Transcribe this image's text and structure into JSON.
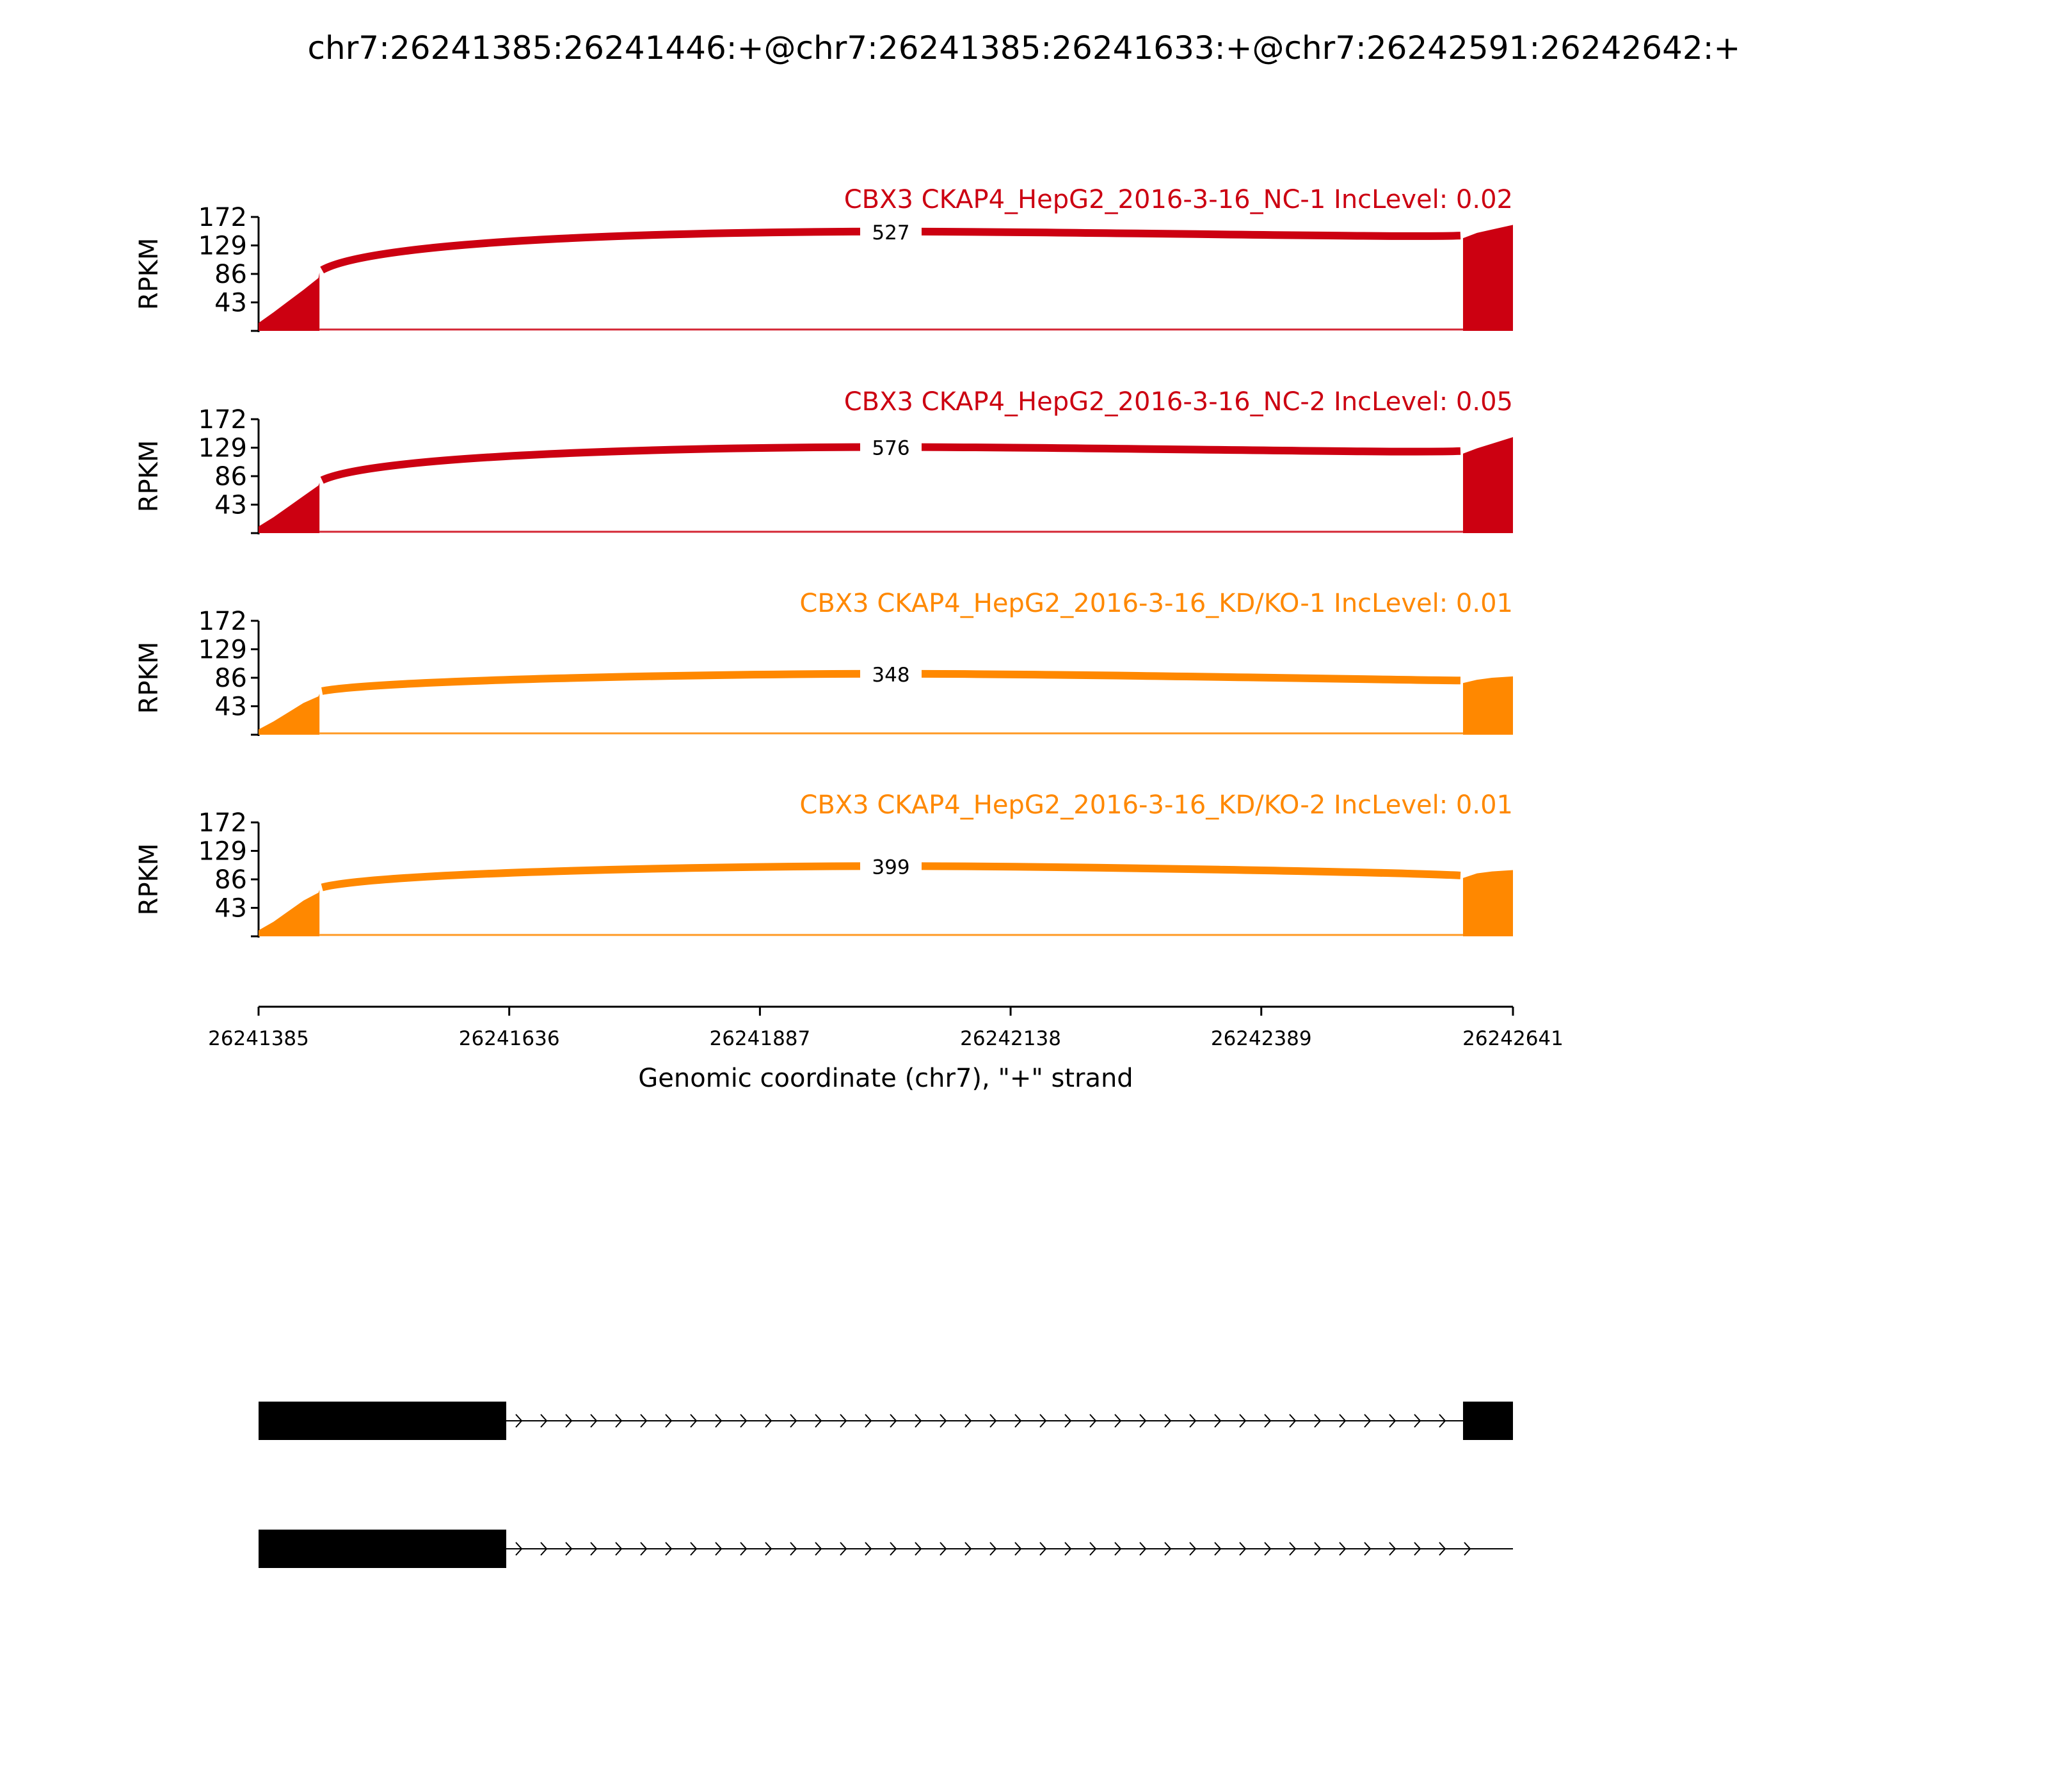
{
  "chart_data": {
    "type": "area",
    "title": "chr7:26241385:26241446:+@chr7:26241385:26241633:+@chr7:26242591:26242642:+",
    "ylabel": "RPKM",
    "xlabel": "Genomic coordinate (chr7), \"+\" strand",
    "xlim": [
      26241385,
      26242641
    ],
    "ylim": [
      0,
      172
    ],
    "yticks": [
      43,
      86,
      129,
      172
    ],
    "xticks": [
      26241385,
      26241636,
      26241887,
      26242138,
      26242389,
      26242641
    ],
    "tracks": [
      {
        "name": "CBX3 CKAP4_HepG2_2016-3-16_NC-1 IncLevel: 0.02",
        "color": "#cc0011",
        "junction_count": "527",
        "exon1_coverage": [
          [
            26241385,
            12
          ],
          [
            26241400,
            28
          ],
          [
            26241415,
            45
          ],
          [
            26241430,
            62
          ],
          [
            26241445,
            80
          ],
          [
            26241446,
            88
          ]
        ],
        "intron_coverage": 2,
        "exon2_coverage": [
          [
            26242591,
            140
          ],
          [
            26242605,
            148
          ],
          [
            26242620,
            153
          ],
          [
            26242641,
            160
          ]
        ],
        "arc_peak": 150
      },
      {
        "name": "CBX3 CKAP4_HepG2_2016-3-16_NC-2 IncLevel: 0.05",
        "color": "#cc0011",
        "junction_count": "576",
        "exon1_coverage": [
          [
            26241385,
            10
          ],
          [
            26241400,
            24
          ],
          [
            26241415,
            40
          ],
          [
            26241430,
            56
          ],
          [
            26241445,
            72
          ],
          [
            26241446,
            76
          ]
        ],
        "intron_coverage": 2,
        "exon2_coverage": [
          [
            26242591,
            120
          ],
          [
            26242605,
            128
          ],
          [
            26242620,
            135
          ],
          [
            26242641,
            145
          ]
        ],
        "arc_peak": 130
      },
      {
        "name": "CBX3 CKAP4_HepG2_2016-3-16_KD/KO-1 IncLevel: 0.01",
        "color": "#ff8800",
        "junction_count": "348",
        "exon1_coverage": [
          [
            26241385,
            8
          ],
          [
            26241400,
            20
          ],
          [
            26241415,
            34
          ],
          [
            26241430,
            48
          ],
          [
            26241445,
            58
          ],
          [
            26241446,
            62
          ]
        ],
        "intron_coverage": 2,
        "exon2_coverage": [
          [
            26242591,
            78
          ],
          [
            26242605,
            83
          ],
          [
            26242620,
            86
          ],
          [
            26242641,
            88
          ]
        ],
        "arc_peak": 92
      },
      {
        "name": "CBX3 CKAP4_HepG2_2016-3-16_KD/KO-2 IncLevel: 0.01",
        "color": "#ff8800",
        "junction_count": "399",
        "exon1_coverage": [
          [
            26241385,
            9
          ],
          [
            26241400,
            22
          ],
          [
            26241415,
            38
          ],
          [
            26241430,
            54
          ],
          [
            26241445,
            66
          ],
          [
            26241446,
            70
          ]
        ],
        "intron_coverage": 2,
        "exon2_coverage": [
          [
            26242591,
            88
          ],
          [
            26242605,
            95
          ],
          [
            26242620,
            98
          ],
          [
            26242641,
            100
          ]
        ],
        "arc_peak": 106
      }
    ],
    "isoforms": [
      {
        "exons": [
          [
            26241385,
            26241633
          ],
          [
            26242591,
            26242642
          ]
        ]
      },
      {
        "exons": [
          [
            26241385,
            26241633
          ]
        ]
      }
    ]
  }
}
